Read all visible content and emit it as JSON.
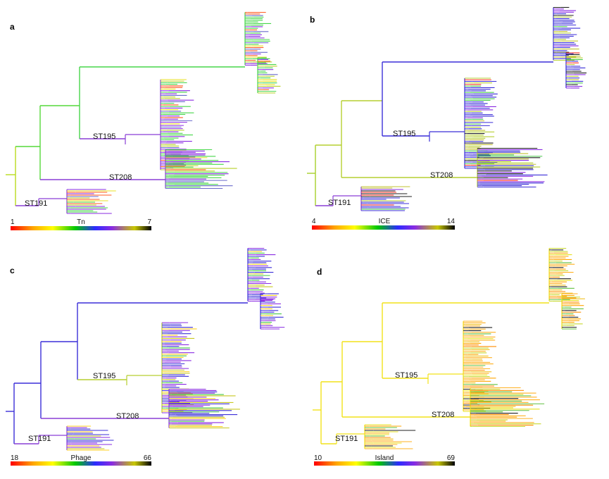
{
  "panels": [
    {
      "letter": "a",
      "colorbar": {
        "min": "1",
        "label": "Tn",
        "max": "7"
      },
      "clades": {
        "st195": "ST195",
        "st208": "ST208",
        "st191": "ST191"
      },
      "colors": {
        "root": "#b9dc1c",
        "spine": "#55d83a",
        "top": "#46d64a",
        "st195": "#8a3fd6",
        "st208": "#8a3fd6",
        "st191": "#8a3fd6"
      }
    },
    {
      "letter": "b",
      "colorbar": {
        "min": "4",
        "label": "ICE",
        "max": "14"
      },
      "clades": {
        "st195": "ST195",
        "st208": "ST208",
        "st191": "ST191"
      },
      "colors": {
        "root": "#a6cf2a",
        "spine": "#b6cf30",
        "top": "#3b2fd8",
        "st195": "#3b2fd8",
        "st208": "#b6cf30",
        "st191": "#8a3fd6"
      }
    },
    {
      "letter": "c",
      "colorbar": {
        "min": "18",
        "label": "Phage",
        "max": "66"
      },
      "clades": {
        "st195": "ST195",
        "st208": "ST208",
        "st191": "ST191"
      },
      "colors": {
        "root": "#3b2fd8",
        "spine": "#3b2fd8",
        "top": "#3b2fd8",
        "st195": "#b6cf30",
        "st208": "#8a3fd6",
        "st191": "#8a3fd6"
      }
    },
    {
      "letter": "d",
      "colorbar": {
        "min": "10",
        "label": "Island",
        "max": "69"
      },
      "clades": {
        "st195": "ST195",
        "st208": "ST208",
        "st191": "ST191"
      },
      "colors": {
        "root": "#f2e21a",
        "spine": "#f2e21a",
        "top": "#f2e21a",
        "st195": "#f2e21a",
        "st208": "#f2e21a",
        "st191": "#f2e21a"
      }
    }
  ]
}
